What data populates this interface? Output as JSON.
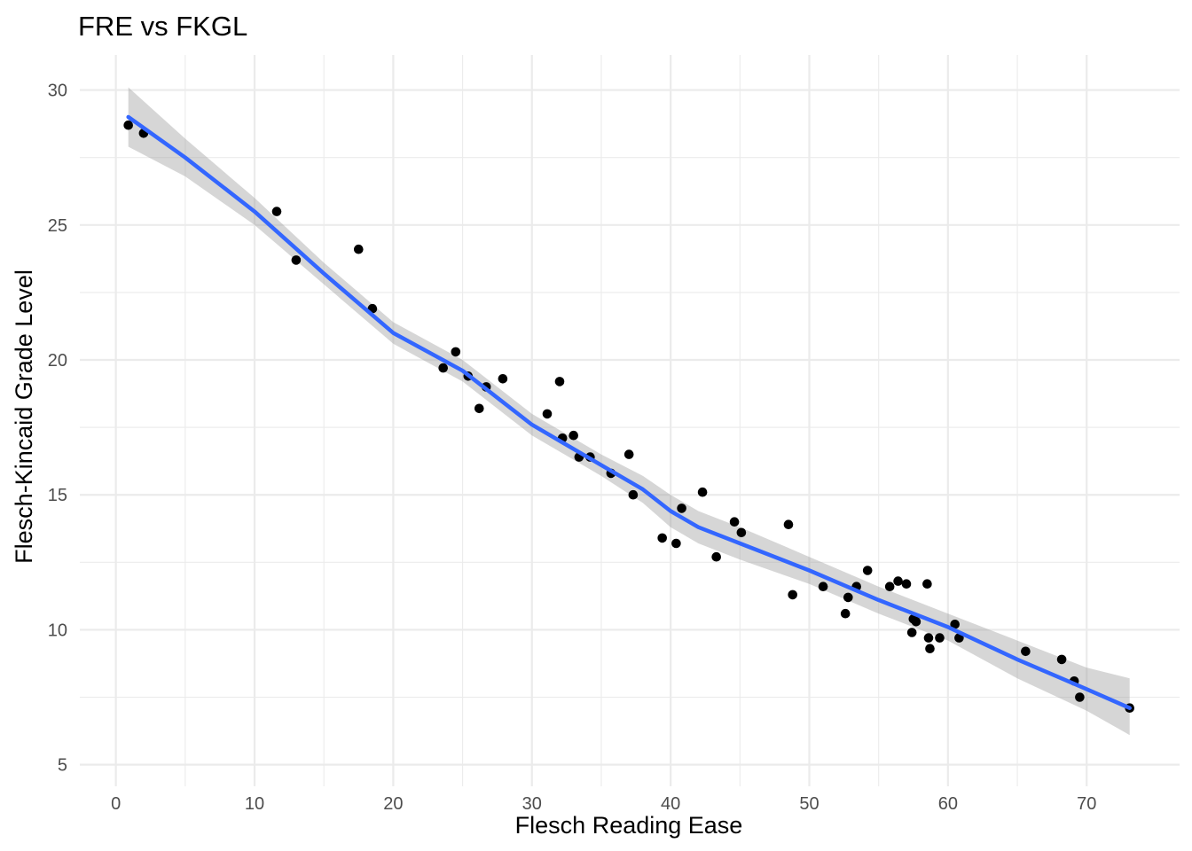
{
  "chart_data": {
    "type": "scatter",
    "title": "FRE vs FKGL",
    "xlabel": "Flesch Reading Ease",
    "ylabel": "Flesch-Kincaid Grade Level",
    "xlim": [
      -2.6,
      76.7
    ],
    "ylim": [
      4.2,
      31.3
    ],
    "xticks": [
      0,
      10,
      20,
      30,
      40,
      50,
      60,
      70
    ],
    "yticks": [
      5,
      10,
      15,
      20,
      25,
      30
    ],
    "grid": true,
    "point_color": "#000000",
    "line_color": "#3366ff",
    "band_color": "#999999",
    "points": [
      [
        0.9,
        28.7
      ],
      [
        2.0,
        28.4
      ],
      [
        11.6,
        25.5
      ],
      [
        13.0,
        23.7
      ],
      [
        17.5,
        24.1
      ],
      [
        18.5,
        21.9
      ],
      [
        23.6,
        19.7
      ],
      [
        24.5,
        20.3
      ],
      [
        25.4,
        19.4
      ],
      [
        26.2,
        18.2
      ],
      [
        26.7,
        19.0
      ],
      [
        27.9,
        19.3
      ],
      [
        31.1,
        18.0
      ],
      [
        32.0,
        19.2
      ],
      [
        32.2,
        17.1
      ],
      [
        33.0,
        17.2
      ],
      [
        33.4,
        16.4
      ],
      [
        34.2,
        16.4
      ],
      [
        35.7,
        15.8
      ],
      [
        37.0,
        16.5
      ],
      [
        37.3,
        15.0
      ],
      [
        39.4,
        13.4
      ],
      [
        40.4,
        13.2
      ],
      [
        40.8,
        14.5
      ],
      [
        42.3,
        15.1
      ],
      [
        43.3,
        12.7
      ],
      [
        44.6,
        14.0
      ],
      [
        45.1,
        13.6
      ],
      [
        48.5,
        13.9
      ],
      [
        48.8,
        11.3
      ],
      [
        51.0,
        11.6
      ],
      [
        52.6,
        10.6
      ],
      [
        52.8,
        11.2
      ],
      [
        53.4,
        11.6
      ],
      [
        54.2,
        12.2
      ],
      [
        55.8,
        11.6
      ],
      [
        56.4,
        11.8
      ],
      [
        57.0,
        11.7
      ],
      [
        57.4,
        9.9
      ],
      [
        57.5,
        10.4
      ],
      [
        57.7,
        10.3
      ],
      [
        58.5,
        11.7
      ],
      [
        58.6,
        9.7
      ],
      [
        58.7,
        9.3
      ],
      [
        59.4,
        9.7
      ],
      [
        60.5,
        10.2
      ],
      [
        60.8,
        9.7
      ],
      [
        65.6,
        9.2
      ],
      [
        68.2,
        8.9
      ],
      [
        69.1,
        8.1
      ],
      [
        69.5,
        7.5
      ],
      [
        73.1,
        7.1
      ]
    ],
    "smooth": {
      "x": [
        0.9,
        5,
        10,
        15,
        20,
        25,
        30,
        35,
        38,
        40,
        42,
        45,
        50,
        55,
        60,
        65,
        70,
        73.1
      ],
      "y": [
        29.0,
        27.5,
        25.5,
        23.2,
        21.0,
        19.6,
        17.6,
        16.1,
        15.2,
        14.4,
        13.8,
        13.2,
        12.2,
        11.1,
        10.1,
        8.9,
        7.8,
        7.1
      ],
      "lower": [
        27.9,
        26.8,
        25.0,
        22.8,
        20.6,
        19.2,
        17.2,
        15.7,
        14.7,
        13.8,
        13.2,
        12.6,
        11.7,
        10.6,
        9.6,
        8.2,
        7.0,
        6.1
      ],
      "upper": [
        30.1,
        28.2,
        26.0,
        23.6,
        21.4,
        20.0,
        18.0,
        16.5,
        15.7,
        15.0,
        14.4,
        13.8,
        12.7,
        11.6,
        10.6,
        9.6,
        8.6,
        8.2
      ]
    }
  }
}
